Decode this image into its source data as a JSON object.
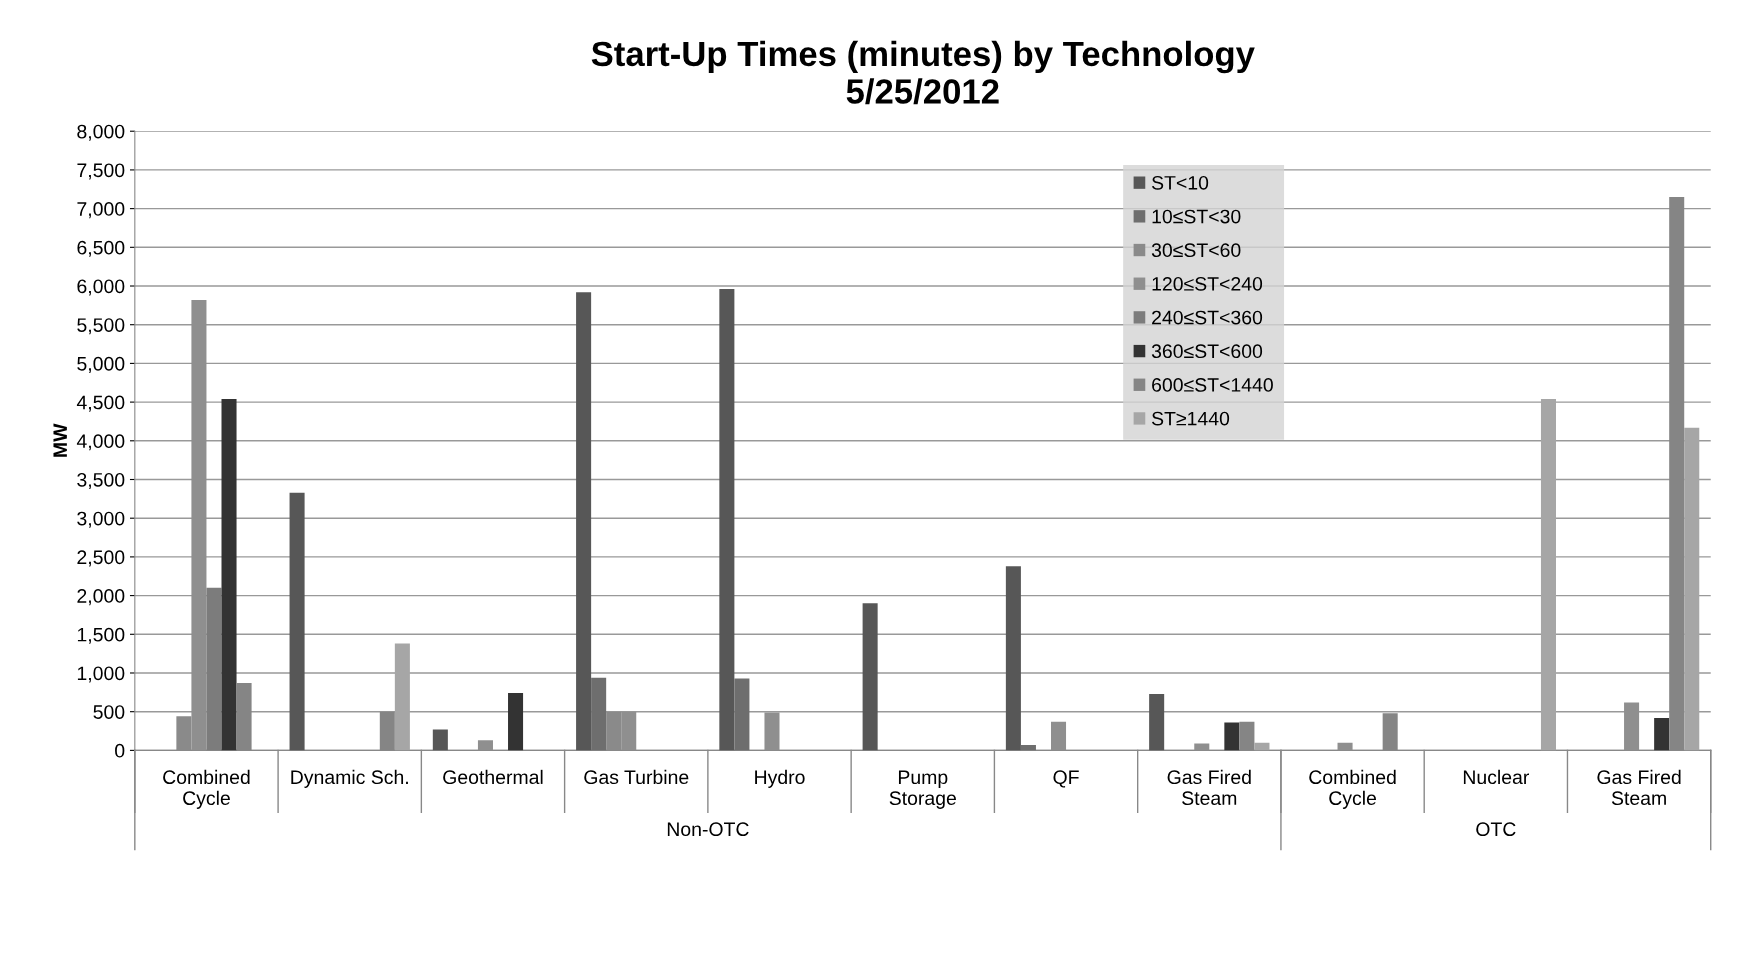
{
  "chart_data": {
    "type": "bar",
    "title": "Start-Up Times (minutes) by Technology\n5/25/2012",
    "ylabel": "MW",
    "categories": [
      "Combined\nCycle",
      "Dynamic Sch.",
      "Geothermal",
      "Gas Turbine",
      "Hydro",
      "Pump\nStorage",
      "QF",
      "Gas Fired\nSteam",
      "Combined\nCycle",
      "Nuclear",
      "Gas Fired\nSteam"
    ],
    "series": [
      {
        "name": "ST<10",
        "color": "#575757",
        "values": [
          0,
          3330,
          270,
          5920,
          5960,
          1900,
          2380,
          730,
          0,
          0,
          0
        ]
      },
      {
        "name": "10≤ST<30",
        "color": "#6e6e6e",
        "values": [
          0,
          0,
          0,
          940,
          930,
          0,
          70,
          0,
          0,
          0,
          0
        ]
      },
      {
        "name": "30≤ST<60",
        "color": "#8a8a8a",
        "values": [
          440,
          0,
          0,
          500,
          0,
          0,
          0,
          0,
          0,
          0,
          0
        ]
      },
      {
        "name": "120≤ST<240",
        "color": "#8f8f8f",
        "values": [
          5820,
          0,
          130,
          500,
          490,
          0,
          370,
          90,
          100,
          0,
          620
        ]
      },
      {
        "name": "240≤ST<360",
        "color": "#7c7c7c",
        "values": [
          2100,
          0,
          0,
          0,
          0,
          0,
          0,
          0,
          0,
          0,
          0
        ]
      },
      {
        "name": "360≤ST<600",
        "color": "#333333",
        "values": [
          4540,
          0,
          740,
          0,
          0,
          0,
          0,
          360,
          0,
          0,
          420
        ]
      },
      {
        "name": "600≤ST<1440",
        "color": "#858585",
        "values": [
          870,
          500,
          0,
          0,
          0,
          0,
          0,
          370,
          480,
          0,
          7150
        ]
      },
      {
        "name": "ST≥1440",
        "color": "#a6a6a6",
        "values": [
          0,
          1380,
          0,
          0,
          0,
          0,
          0,
          100,
          0,
          4540,
          4170
        ]
      }
    ],
    "ylim": [
      0,
      8000
    ],
    "yticks": [
      {
        "value": 0,
        "label": "0"
      },
      {
        "value": 500,
        "label": "500"
      },
      {
        "value": 1000,
        "label": "1,000"
      },
      {
        "value": 1500,
        "label": "1,500"
      },
      {
        "value": 2000,
        "label": "2,000"
      },
      {
        "value": 2500,
        "label": "2,500"
      },
      {
        "value": 3000,
        "label": "3,000"
      },
      {
        "value": 3500,
        "label": "3,500"
      },
      {
        "value": 4000,
        "label": "4,000"
      },
      {
        "value": 4500,
        "label": "4,500"
      },
      {
        "value": 5000,
        "label": "5,000"
      },
      {
        "value": 5500,
        "label": "5,500"
      },
      {
        "value": 6000,
        "label": "6,000"
      },
      {
        "value": 6500,
        "label": "6,500"
      },
      {
        "value": 7000,
        "label": "7,000"
      },
      {
        "value": 7500,
        "label": "7,500"
      },
      {
        "value": 8000,
        "label": "8,000"
      }
    ],
    "grid": "y",
    "legend": "top right",
    "annotations": [
      "Non-OTC",
      "OTC"
    ]
  }
}
